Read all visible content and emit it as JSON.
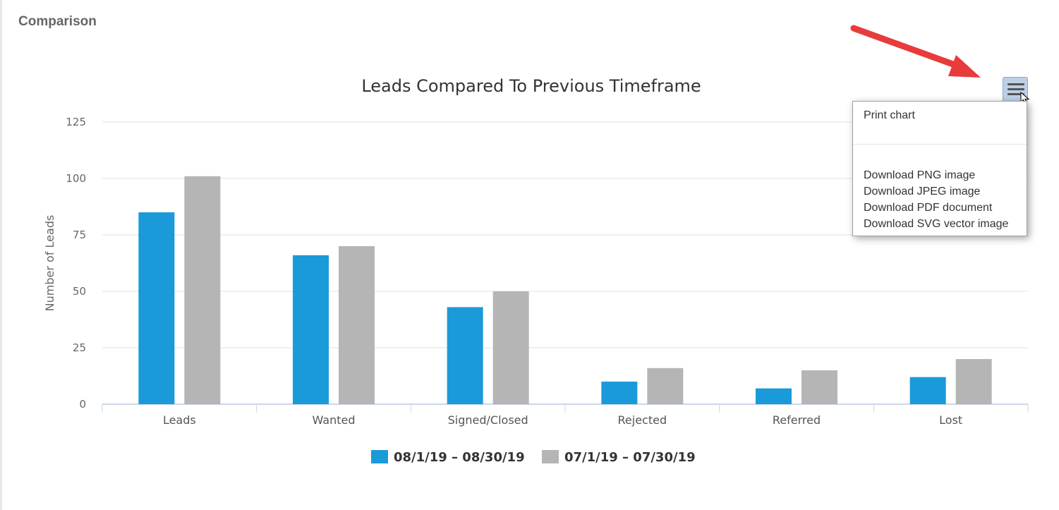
{
  "panel": {
    "title": "Comparison"
  },
  "chart_data": {
    "type": "bar",
    "title": "Leads Compared To Previous Timeframe",
    "xlabel": "",
    "ylabel": "Number of Leads",
    "ylim": [
      0,
      125
    ],
    "yticks": [
      0,
      25,
      50,
      75,
      100,
      125
    ],
    "categories": [
      "Leads",
      "Wanted",
      "Signed/Closed",
      "Rejected",
      "Referred",
      "Lost"
    ],
    "series": [
      {
        "name": "08/1/19 – 08/30/19",
        "color": "#1a9ad9",
        "values": [
          85,
          66,
          43,
          10,
          7,
          12
        ]
      },
      {
        "name": "07/1/19 – 07/30/19",
        "color": "#b5b5b5",
        "values": [
          101,
          70,
          50,
          16,
          15,
          20
        ]
      }
    ],
    "grid": true,
    "legend": "bottom-center"
  },
  "export_menu": {
    "button_icon": "hamburger-menu-icon",
    "items": [
      "Print chart",
      "Download PNG image",
      "Download JPEG image",
      "Download PDF document",
      "Download SVG vector image"
    ]
  },
  "annotation": {
    "arrow_color": "#e83b3b"
  }
}
